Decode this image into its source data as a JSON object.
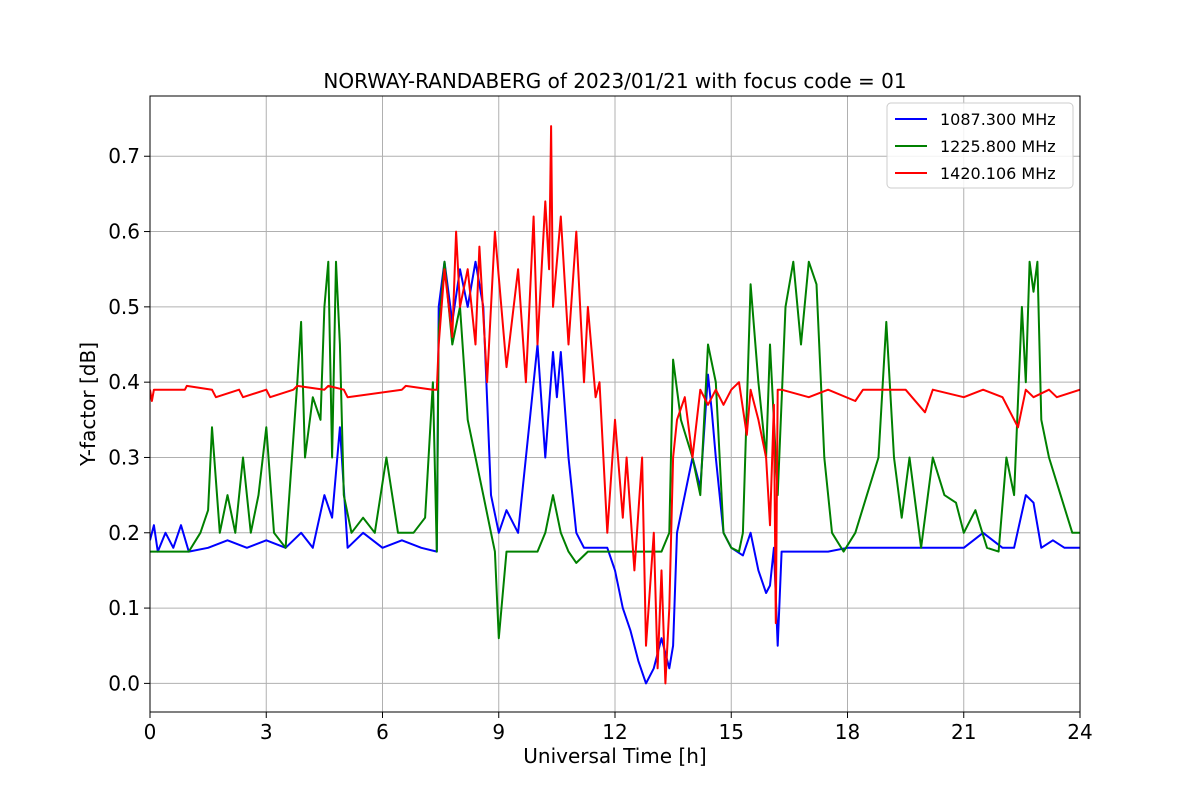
{
  "chart_data": {
    "type": "line",
    "title": "NORWAY-RANDABERG of 2023/01/21 with focus code = 01",
    "xlabel": "Universal Time [h]",
    "ylabel": "Y-factor [dB]",
    "xlim": [
      0,
      24
    ],
    "ylim": [
      -0.038,
      0.78
    ],
    "xticks": [
      0,
      3,
      6,
      9,
      12,
      15,
      18,
      21,
      24
    ],
    "yticks": [
      0.0,
      0.1,
      0.2,
      0.3,
      0.4,
      0.5,
      0.6,
      0.7
    ],
    "grid": true,
    "legend_position": "top-right",
    "series": [
      {
        "name": "1087.300 MHz",
        "color": "#0000ff",
        "x": [
          0,
          0.1,
          0.2,
          0.4,
          0.6,
          0.8,
          1.0,
          1.5,
          2.0,
          2.5,
          3.0,
          3.5,
          3.9,
          4.2,
          4.5,
          4.7,
          4.9,
          5.1,
          5.5,
          6.0,
          6.5,
          7.0,
          7.4,
          7.45,
          7.6,
          7.8,
          8.0,
          8.2,
          8.4,
          8.6,
          8.8,
          9.0,
          9.2,
          9.5,
          9.8,
          10.0,
          10.2,
          10.4,
          10.5,
          10.6,
          10.8,
          11.0,
          11.2,
          11.5,
          11.8,
          12.0,
          12.2,
          12.4,
          12.6,
          12.8,
          13.0,
          13.2,
          13.4,
          13.5,
          13.6,
          13.8,
          14.0,
          14.2,
          14.4,
          14.5,
          14.6,
          14.8,
          15.0,
          15.3,
          15.5,
          15.7,
          15.9,
          16.0,
          16.1,
          16.2,
          16.3,
          16.5,
          17.0,
          17.5,
          18.0,
          18.5,
          19.0,
          19.5,
          20.0,
          20.5,
          21.0,
          21.5,
          22.0,
          22.3,
          22.6,
          22.8,
          23.0,
          23.3,
          23.6,
          24.0
        ],
        "y": [
          0.19,
          0.21,
          0.175,
          0.2,
          0.18,
          0.21,
          0.175,
          0.18,
          0.19,
          0.18,
          0.19,
          0.18,
          0.2,
          0.18,
          0.25,
          0.22,
          0.34,
          0.18,
          0.2,
          0.18,
          0.19,
          0.18,
          0.175,
          0.5,
          0.56,
          0.48,
          0.55,
          0.5,
          0.56,
          0.5,
          0.25,
          0.2,
          0.23,
          0.2,
          0.35,
          0.45,
          0.3,
          0.44,
          0.38,
          0.44,
          0.3,
          0.2,
          0.18,
          0.18,
          0.18,
          0.15,
          0.1,
          0.07,
          0.03,
          0.0,
          0.02,
          0.06,
          0.02,
          0.05,
          0.2,
          0.25,
          0.3,
          0.26,
          0.41,
          0.36,
          0.3,
          0.2,
          0.18,
          0.17,
          0.2,
          0.15,
          0.12,
          0.13,
          0.18,
          0.05,
          0.175,
          0.175,
          0.175,
          0.175,
          0.18,
          0.18,
          0.18,
          0.18,
          0.18,
          0.18,
          0.18,
          0.2,
          0.18,
          0.18,
          0.25,
          0.24,
          0.18,
          0.19,
          0.18,
          0.18
        ]
      },
      {
        "name": "1225.800 MHz",
        "color": "#008000",
        "x": [
          0,
          0.5,
          1.0,
          1.3,
          1.5,
          1.6,
          1.8,
          2.0,
          2.2,
          2.4,
          2.6,
          2.8,
          3.0,
          3.2,
          3.5,
          3.8,
          3.9,
          4.0,
          4.2,
          4.4,
          4.5,
          4.6,
          4.7,
          4.8,
          4.9,
          5.0,
          5.2,
          5.5,
          5.8,
          6.1,
          6.4,
          6.8,
          7.1,
          7.3,
          7.4,
          7.45,
          7.6,
          7.8,
          8.0,
          8.2,
          8.4,
          8.6,
          8.8,
          8.9,
          9.0,
          9.2,
          9.5,
          9.8,
          10.0,
          10.2,
          10.4,
          10.6,
          10.8,
          11.0,
          11.3,
          11.6,
          12.0,
          12.5,
          13.0,
          13.2,
          13.4,
          13.5,
          13.7,
          14.0,
          14.2,
          14.4,
          14.6,
          14.8,
          15.0,
          15.2,
          15.3,
          15.5,
          15.7,
          15.9,
          16.0,
          16.2,
          16.4,
          16.6,
          16.8,
          17.0,
          17.2,
          17.4,
          17.6,
          17.9,
          18.2,
          18.5,
          18.8,
          19.0,
          19.2,
          19.4,
          19.6,
          19.9,
          20.2,
          20.5,
          20.8,
          21.0,
          21.3,
          21.6,
          21.9,
          22.1,
          22.3,
          22.5,
          22.6,
          22.7,
          22.8,
          22.9,
          23.0,
          23.2,
          23.5,
          23.8,
          24.0
        ],
        "y": [
          0.175,
          0.175,
          0.175,
          0.2,
          0.23,
          0.34,
          0.2,
          0.25,
          0.2,
          0.3,
          0.2,
          0.25,
          0.34,
          0.2,
          0.18,
          0.4,
          0.48,
          0.3,
          0.38,
          0.35,
          0.5,
          0.56,
          0.3,
          0.56,
          0.45,
          0.25,
          0.2,
          0.22,
          0.2,
          0.3,
          0.2,
          0.2,
          0.22,
          0.4,
          0.175,
          0.47,
          0.56,
          0.45,
          0.5,
          0.35,
          0.3,
          0.25,
          0.2,
          0.175,
          0.06,
          0.175,
          0.175,
          0.175,
          0.175,
          0.2,
          0.25,
          0.2,
          0.175,
          0.16,
          0.175,
          0.175,
          0.175,
          0.175,
          0.175,
          0.175,
          0.2,
          0.43,
          0.35,
          0.3,
          0.25,
          0.45,
          0.4,
          0.2,
          0.18,
          0.175,
          0.2,
          0.53,
          0.4,
          0.3,
          0.45,
          0.25,
          0.5,
          0.56,
          0.45,
          0.56,
          0.53,
          0.3,
          0.2,
          0.175,
          0.2,
          0.25,
          0.3,
          0.48,
          0.3,
          0.22,
          0.3,
          0.18,
          0.3,
          0.25,
          0.24,
          0.2,
          0.23,
          0.18,
          0.175,
          0.3,
          0.25,
          0.5,
          0.4,
          0.56,
          0.52,
          0.56,
          0.35,
          0.3,
          0.25,
          0.2,
          0.2
        ]
      },
      {
        "name": "1420.106 MHz",
        "color": "#ff0000",
        "x": [
          0,
          0.05,
          0.1,
          0.9,
          0.95,
          1.6,
          1.7,
          2.3,
          2.4,
          3.0,
          3.1,
          3.7,
          3.8,
          4.5,
          4.6,
          5.0,
          5.1,
          6.5,
          6.6,
          7.3,
          7.4,
          7.45,
          7.6,
          7.8,
          7.9,
          8.0,
          8.2,
          8.4,
          8.5,
          8.7,
          8.9,
          9.2,
          9.5,
          9.7,
          9.9,
          10.0,
          10.2,
          10.3,
          10.35,
          10.4,
          10.6,
          10.8,
          11.0,
          11.2,
          11.3,
          11.5,
          11.6,
          11.8,
          12.0,
          12.2,
          12.3,
          12.5,
          12.7,
          12.8,
          13.0,
          13.1,
          13.2,
          13.3,
          13.4,
          13.5,
          13.6,
          13.8,
          14.0,
          14.2,
          14.4,
          14.6,
          14.8,
          15.0,
          15.2,
          15.4,
          15.5,
          15.7,
          15.9,
          16.0,
          16.1,
          16.15,
          16.2,
          16.3,
          17.0,
          17.5,
          18.2,
          18.4,
          19.5,
          20.0,
          20.2,
          21.0,
          21.5,
          22.0,
          22.4,
          22.6,
          22.8,
          23.2,
          23.4,
          24.0
        ],
        "y": [
          0.39,
          0.375,
          0.39,
          0.39,
          0.395,
          0.39,
          0.38,
          0.39,
          0.38,
          0.39,
          0.38,
          0.39,
          0.395,
          0.39,
          0.395,
          0.39,
          0.38,
          0.39,
          0.395,
          0.39,
          0.39,
          0.45,
          0.55,
          0.46,
          0.6,
          0.5,
          0.55,
          0.45,
          0.58,
          0.4,
          0.6,
          0.42,
          0.55,
          0.4,
          0.62,
          0.45,
          0.64,
          0.55,
          0.74,
          0.5,
          0.62,
          0.45,
          0.6,
          0.4,
          0.5,
          0.38,
          0.4,
          0.2,
          0.35,
          0.22,
          0.3,
          0.15,
          0.3,
          0.05,
          0.2,
          0.02,
          0.15,
          0.0,
          0.1,
          0.3,
          0.35,
          0.38,
          0.3,
          0.39,
          0.37,
          0.39,
          0.37,
          0.39,
          0.4,
          0.33,
          0.39,
          0.35,
          0.3,
          0.21,
          0.37,
          0.08,
          0.39,
          0.39,
          0.38,
          0.39,
          0.375,
          0.39,
          0.39,
          0.36,
          0.39,
          0.38,
          0.39,
          0.38,
          0.34,
          0.39,
          0.38,
          0.39,
          0.38,
          0.39
        ]
      }
    ]
  }
}
